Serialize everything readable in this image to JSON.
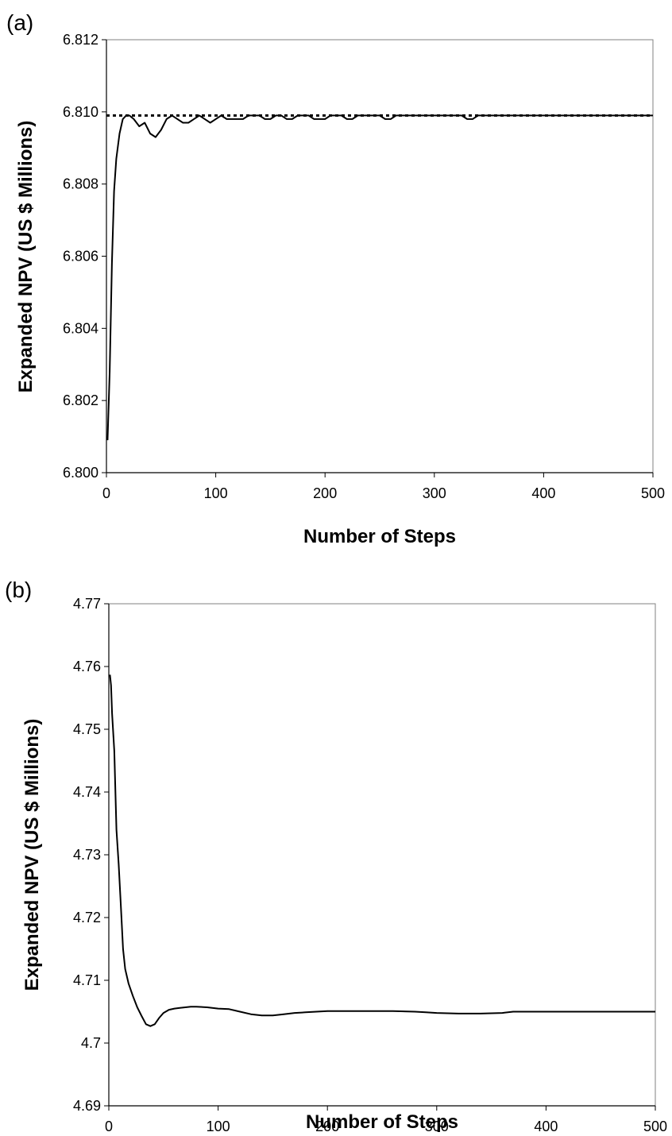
{
  "chart_data": [
    {
      "panel_label": "(a)",
      "type": "line",
      "xlabel": "Number of Steps",
      "ylabel": "Expanded NPV (US $ Millions)",
      "xlim": [
        0,
        500
      ],
      "ylim": [
        6.8,
        6.812
      ],
      "xticks": [
        "0",
        "100",
        "200",
        "300",
        "400",
        "500"
      ],
      "yticks": [
        "6.800",
        "6.802",
        "6.804",
        "6.806",
        "6.808",
        "6.810",
        "6.812"
      ],
      "grid": false,
      "reference_line": {
        "y": 6.8099,
        "style": "dotted"
      },
      "series": [
        {
          "style": "solid",
          "x": [
            1,
            3,
            5,
            7,
            9,
            12,
            15,
            18,
            21,
            25,
            30,
            35,
            40,
            45,
            50,
            55,
            60,
            65,
            70,
            75,
            80,
            85,
            90,
            95,
            100,
            105,
            110,
            115,
            120,
            125,
            130,
            135,
            140,
            145,
            150,
            155,
            160,
            165,
            170,
            175,
            180,
            185,
            190,
            195,
            200,
            205,
            210,
            215,
            220,
            225,
            230,
            235,
            240,
            245,
            250,
            255,
            260,
            265,
            270,
            275,
            280,
            285,
            290,
            295,
            300,
            305,
            310,
            315,
            320,
            325,
            330,
            335,
            340,
            345,
            350,
            360,
            370,
            380,
            390,
            400,
            410,
            420,
            430,
            440,
            450,
            460,
            470,
            480,
            490,
            500
          ],
          "y": [
            6.8009,
            6.8028,
            6.8058,
            6.8078,
            6.8087,
            6.8094,
            6.8098,
            6.8099,
            6.8099,
            6.8098,
            6.8096,
            6.8097,
            6.8094,
            6.8093,
            6.8095,
            6.8098,
            6.8099,
            6.8098,
            6.8097,
            6.8097,
            6.8098,
            6.8099,
            6.8098,
            6.8097,
            6.8098,
            6.8099,
            6.8098,
            6.8098,
            6.8098,
            6.8098,
            6.8099,
            6.8099,
            6.8099,
            6.8098,
            6.8098,
            6.8099,
            6.8099,
            6.8098,
            6.8098,
            6.8099,
            6.8099,
            6.8099,
            6.8098,
            6.8098,
            6.8098,
            6.8099,
            6.8099,
            6.8099,
            6.8098,
            6.8098,
            6.8099,
            6.8099,
            6.8099,
            6.8099,
            6.8099,
            6.8098,
            6.8098,
            6.8099,
            6.8099,
            6.8099,
            6.8099,
            6.8099,
            6.8099,
            6.8099,
            6.8099,
            6.8099,
            6.8099,
            6.8099,
            6.8099,
            6.8099,
            6.8098,
            6.8098,
            6.8099,
            6.8099,
            6.8099,
            6.8099,
            6.8099,
            6.8099,
            6.8099,
            6.8099,
            6.8099,
            6.8099,
            6.8099,
            6.8099,
            6.8099,
            6.8099,
            6.8099,
            6.8099,
            6.8099,
            6.8099
          ]
        }
      ]
    },
    {
      "panel_label": "(b)",
      "type": "line",
      "xlabel": "Number of Steps",
      "ylabel": "Expanded NPV (US $ Millions)",
      "xlim": [
        0,
        500
      ],
      "ylim": [
        4.69,
        4.77
      ],
      "xticks": [
        "0",
        "100",
        "200",
        "300",
        "400",
        "500"
      ],
      "yticks": [
        "4.69",
        "4.7",
        "4.71",
        "4.72",
        "4.73",
        "4.74",
        "4.75",
        "4.76",
        "4.77"
      ],
      "grid": false,
      "series": [
        {
          "style": "solid",
          "x": [
            1,
            2,
            3,
            5,
            7,
            9,
            11,
            13,
            15,
            18,
            22,
            26,
            30,
            34,
            38,
            42,
            46,
            50,
            55,
            60,
            65,
            70,
            75,
            80,
            90,
            100,
            110,
            120,
            130,
            140,
            150,
            160,
            170,
            180,
            190,
            200,
            220,
            240,
            260,
            280,
            290,
            300,
            320,
            340,
            360,
            370,
            380,
            400,
            420,
            440,
            460,
            480,
            500
          ],
          "y": [
            4.7587,
            4.757,
            4.7525,
            4.7465,
            4.734,
            4.7285,
            4.722,
            4.715,
            4.7118,
            4.7095,
            4.7075,
            4.7057,
            4.7043,
            4.703,
            4.7027,
            4.703,
            4.704,
            4.7048,
            4.7053,
            4.7055,
            4.7056,
            4.7057,
            4.7058,
            4.7058,
            4.7057,
            4.7055,
            4.7054,
            4.705,
            4.7046,
            4.7044,
            4.7044,
            4.7046,
            4.7048,
            4.7049,
            4.705,
            4.7051,
            4.7051,
            4.7051,
            4.7051,
            4.705,
            4.7049,
            4.7048,
            4.7047,
            4.7047,
            4.7048,
            4.705,
            4.705,
            4.705,
            4.705,
            4.705,
            4.705,
            4.705,
            4.705
          ]
        }
      ]
    }
  ]
}
